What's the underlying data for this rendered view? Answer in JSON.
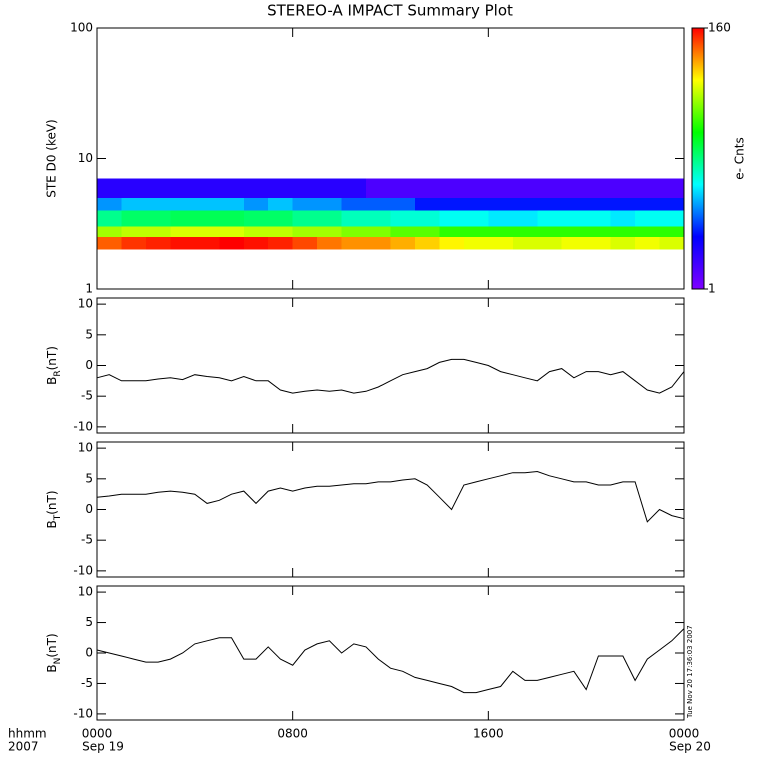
{
  "chart_data": [
    {
      "type": "heatmap",
      "title": "STEREO-A IMPACT Summary Plot",
      "ylabel": "STE D0 (keV)",
      "x_bins": [
        0,
        1,
        2,
        3,
        4,
        5,
        6,
        7,
        8,
        9,
        10,
        11,
        12,
        13,
        14,
        15,
        16,
        17,
        18,
        19,
        20,
        21,
        22,
        23,
        24
      ],
      "y_bins": [
        2,
        2.5,
        3,
        4,
        5,
        7
      ],
      "z": [
        [
          110,
          130,
          140,
          150,
          150,
          160,
          150,
          140,
          120,
          100,
          90,
          90,
          80,
          70,
          60,
          55,
          55,
          50,
          50,
          55,
          55,
          50,
          55,
          50
        ],
        [
          40,
          45,
          45,
          50,
          50,
          50,
          45,
          45,
          40,
          40,
          35,
          35,
          30,
          30,
          25,
          25,
          25,
          25,
          25,
          25,
          25,
          25,
          25,
          25
        ],
        [
          12,
          14,
          14,
          15,
          15,
          15,
          14,
          14,
          12,
          12,
          10,
          10,
          9,
          9,
          8,
          8,
          7,
          7,
          8,
          8,
          8,
          7,
          8,
          8
        ],
        [
          5,
          6,
          6,
          6,
          6,
          6,
          5,
          6,
          5,
          5,
          4,
          4,
          4,
          3,
          3,
          3,
          3,
          3,
          3,
          3,
          3,
          3,
          3,
          3
        ],
        [
          2,
          2,
          2,
          2,
          2,
          2,
          2,
          2,
          2,
          2,
          2,
          1.5,
          1.5,
          1.5,
          1.5,
          1.5,
          1.5,
          1.5,
          1.5,
          1.5,
          1.5,
          1.5,
          1.5,
          1.5
        ]
      ],
      "xlim": [
        0,
        24
      ],
      "xticks": [
        0,
        8,
        16,
        24
      ],
      "ylim": [
        1,
        100
      ],
      "yticks": [
        1,
        10,
        100
      ],
      "ylog": true,
      "clim": [
        1,
        160
      ],
      "cticks": [
        1,
        160
      ],
      "clabel": "e- Cnts",
      "clog": true,
      "colorscale": [
        "#7f00ff",
        "#0000ff",
        "#00ffff",
        "#00ff00",
        "#ffff00",
        "#ff0000"
      ]
    },
    {
      "type": "line",
      "ylabel": "B",
      "ylabel_sub": "R",
      "ylabel_unit": "(nT)",
      "color": "#000000",
      "x": [
        0,
        0.5,
        1,
        1.5,
        2,
        2.5,
        3,
        3.5,
        4,
        4.5,
        5,
        5.5,
        6,
        6.5,
        7,
        7.5,
        8,
        8.5,
        9,
        9.5,
        10,
        10.5,
        11,
        11.5,
        12,
        12.5,
        13,
        13.5,
        14,
        14.5,
        15,
        15.5,
        16,
        16.5,
        17,
        17.5,
        18,
        18.5,
        19,
        19.5,
        20,
        20.5,
        21,
        21.5,
        22,
        22.5,
        23,
        23.5,
        24
      ],
      "values": [
        -2,
        -1.5,
        -2.5,
        -2.5,
        -2.5,
        -2.2,
        -2,
        -2.3,
        -1.5,
        -1.8,
        -2,
        -2.5,
        -1.8,
        -2.5,
        -2.5,
        -4,
        -4.5,
        -4.2,
        -4,
        -4.2,
        -4,
        -4.5,
        -4.2,
        -3.5,
        -2.5,
        -1.5,
        -1,
        -0.5,
        0.5,
        1,
        1,
        0.5,
        0,
        -1,
        -1.5,
        -2,
        -2.5,
        -1,
        -0.5,
        -2,
        -1,
        -1,
        -1.5,
        -1,
        -2.5,
        -4,
        -4.5,
        -3.5,
        -1
      ],
      "xlim": [
        0,
        24
      ],
      "xticks": [
        0,
        8,
        16,
        24
      ],
      "ylim": [
        -11,
        11
      ],
      "yticks": [
        -10,
        -5,
        0,
        5,
        10
      ]
    },
    {
      "type": "line",
      "ylabel": "B",
      "ylabel_sub": "T",
      "ylabel_unit": "(nT)",
      "color": "#000000",
      "x": [
        0,
        0.5,
        1,
        1.5,
        2,
        2.5,
        3,
        3.5,
        4,
        4.5,
        5,
        5.5,
        6,
        6.5,
        7,
        7.5,
        8,
        8.5,
        9,
        9.5,
        10,
        10.5,
        11,
        11.5,
        12,
        12.5,
        13,
        13.5,
        14,
        14.5,
        15,
        15.5,
        16,
        16.5,
        17,
        17.5,
        18,
        18.5,
        19,
        19.5,
        20,
        20.5,
        21,
        21.5,
        22,
        22.5,
        23,
        23.5,
        24
      ],
      "values": [
        2,
        2.2,
        2.5,
        2.5,
        2.5,
        2.8,
        3,
        2.8,
        2.5,
        1,
        1.5,
        2.5,
        3,
        1,
        3,
        3.5,
        3,
        3.5,
        3.8,
        3.8,
        4,
        4.2,
        4.2,
        4.5,
        4.5,
        4.8,
        5,
        4,
        2,
        0,
        4,
        4.5,
        5,
        5.5,
        6,
        6,
        6.2,
        5.5,
        5,
        4.5,
        4.5,
        4,
        4,
        4.5,
        4.5,
        -2,
        0,
        -1,
        -1.5
      ],
      "xlim": [
        0,
        24
      ],
      "xticks": [
        0,
        8,
        16,
        24
      ],
      "ylim": [
        -11,
        11
      ],
      "yticks": [
        -10,
        -5,
        0,
        5,
        10
      ]
    },
    {
      "type": "line",
      "ylabel": "B",
      "ylabel_sub": "N",
      "ylabel_unit": "(nT)",
      "color": "#000000",
      "x": [
        0,
        0.5,
        1,
        1.5,
        2,
        2.5,
        3,
        3.5,
        4,
        4.5,
        5,
        5.5,
        6,
        6.5,
        7,
        7.5,
        8,
        8.5,
        9,
        9.5,
        10,
        10.5,
        11,
        11.5,
        12,
        12.5,
        13,
        13.5,
        14,
        14.5,
        15,
        15.5,
        16,
        16.5,
        17,
        17.5,
        18,
        18.5,
        19,
        19.5,
        20,
        20.5,
        21,
        21.5,
        22,
        22.5,
        23,
        23.5,
        24
      ],
      "values": [
        0.5,
        0,
        -0.5,
        -1,
        -1.5,
        -1.5,
        -1,
        0,
        1.5,
        2,
        2.5,
        2.5,
        -1,
        -1,
        1,
        -1,
        -2,
        0.5,
        1.5,
        2,
        0,
        1.5,
        1,
        -1,
        -2.5,
        -3,
        -4,
        -4.5,
        -5,
        -5.5,
        -6.5,
        -6.5,
        -6,
        -5.5,
        -3,
        -4.5,
        -4.5,
        -4,
        -3.5,
        -3,
        -6,
        -0.5,
        -0.5,
        -0.5,
        -4.5,
        -1,
        0.5,
        2,
        4
      ],
      "xlim": [
        0,
        24
      ],
      "xticks": [
        {
          "value": 0,
          "label": "0000"
        },
        {
          "value": 8,
          "label": "0800"
        },
        {
          "value": 16,
          "label": "1600"
        },
        {
          "value": 24,
          "label": "0000"
        }
      ],
      "xticks2": [
        {
          "value": 0,
          "label": "Sep 19"
        },
        {
          "value": 24,
          "label": "Sep 20"
        }
      ],
      "xlabel": [
        "hhmm",
        "2007"
      ],
      "annotation": "Tue Nov 20 17:36:03 2007",
      "ylim": [
        -11,
        11
      ],
      "yticks": [
        -10,
        -5,
        0,
        5,
        10
      ]
    }
  ]
}
